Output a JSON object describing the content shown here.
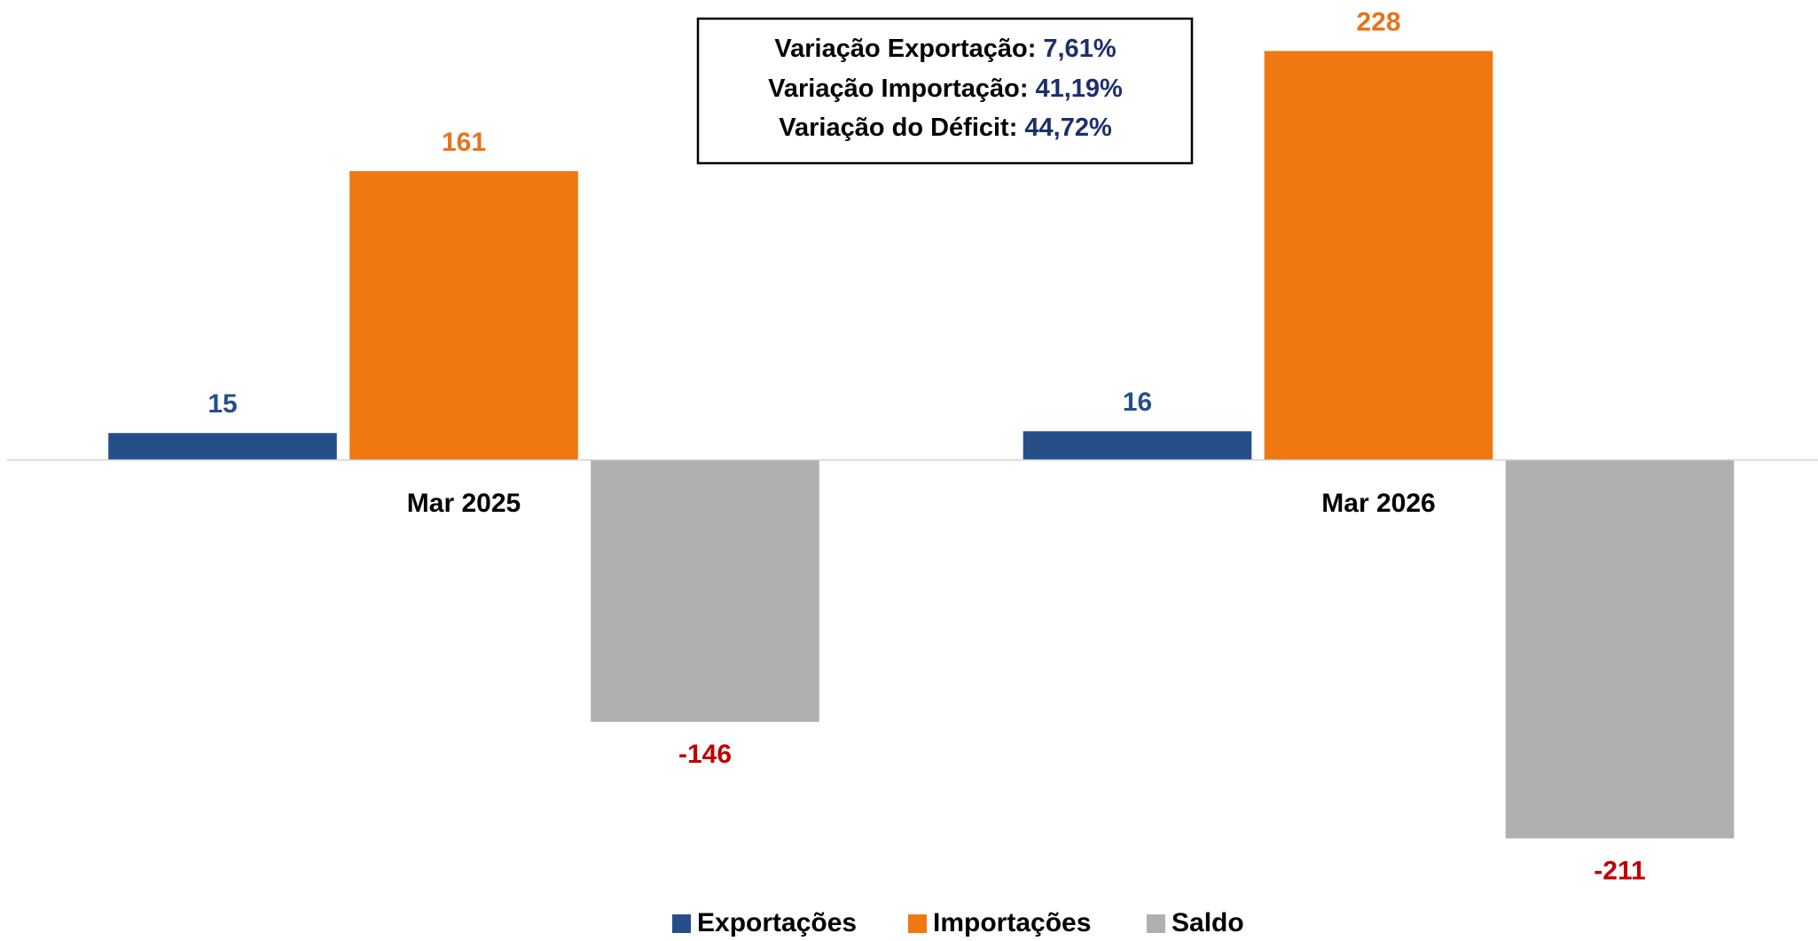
{
  "chart_data": {
    "type": "bar",
    "categories": [
      "Mar 2025",
      "Mar 2026"
    ],
    "series": [
      {
        "name": "Exportações",
        "color": "#264f8a",
        "label_color": "#264f8a",
        "values": [
          15,
          16
        ]
      },
      {
        "name": "Importações",
        "color": "#f07810",
        "label_color": "#e8731a",
        "values": [
          161,
          228
        ]
      },
      {
        "name": "Saldo",
        "color": "#b0b0b0",
        "label_color": "#c00000",
        "values": [
          -146,
          -211
        ]
      }
    ],
    "ylim": [
      -240,
      250
    ],
    "grid": false,
    "legend": "bottom",
    "annotations": [
      {
        "label": "Variação Exportação:",
        "value": "7,61%"
      },
      {
        "label": "Variação Importação:",
        "value": "41,19%"
      },
      {
        "label": "Variação do Déficit:",
        "value": "44,72%"
      }
    ]
  }
}
